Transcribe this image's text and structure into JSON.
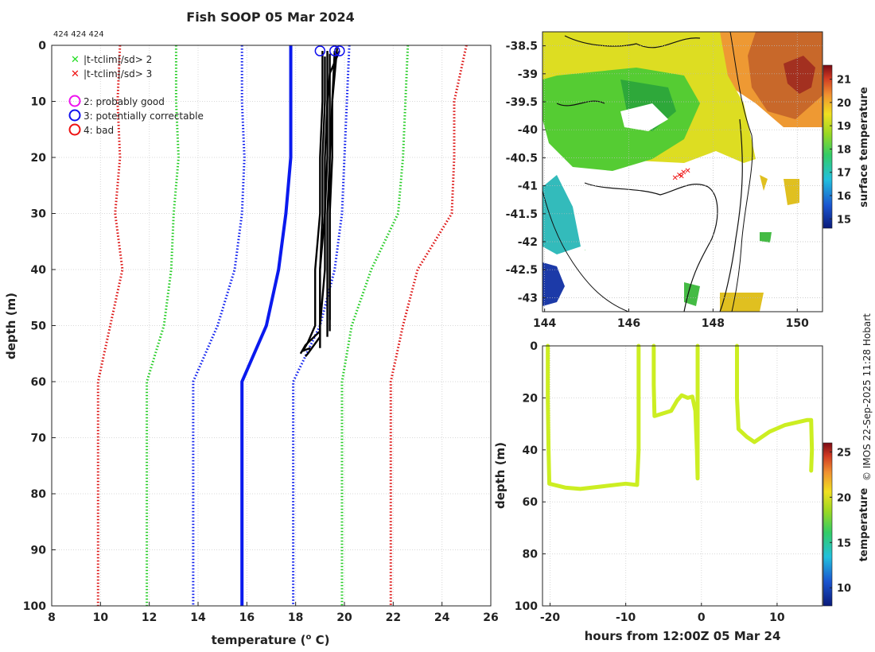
{
  "title": "Fish SOOP 05 Mar 2024",
  "id_label": "424 424 424",
  "credit": "© IMOS 22-Sep-2025 11:28 Hobart",
  "legend": {
    "items": [
      {
        "label": "|t-tclim|/sd> 2",
        "marker": "x",
        "color": "#22dd22"
      },
      {
        "label": "|t-tclim|/sd> 3",
        "marker": "x",
        "color": "#ee1111"
      },
      {
        "label": "2: probably good",
        "marker": "o",
        "color": "#ee11ee"
      },
      {
        "label": "3: potentially correctable",
        "marker": "o",
        "color": "#1111ee"
      },
      {
        "label": "4: bad",
        "marker": "o",
        "color": "#ee1111"
      }
    ]
  },
  "colors": {
    "clim_mean": "#0a1aee",
    "clim_sd2": "#22cc22",
    "clim_sd3": "#dd1111",
    "profile": "#000000",
    "transect": "#ccee22",
    "map_track": "#ee1111"
  },
  "chart_data": [
    {
      "type": "line",
      "name": "profile-plot",
      "xlabel": "temperature (o C)",
      "xlabel_main": "temperature (",
      "xlabel_sup": "o",
      "xlabel_end": " C)",
      "ylabel": "depth (m)",
      "xlim": [
        8,
        26
      ],
      "ylim": [
        100,
        0
      ],
      "xticks": [
        8,
        10,
        12,
        14,
        16,
        18,
        20,
        22,
        24,
        26
      ],
      "yticks": [
        0,
        10,
        20,
        30,
        40,
        50,
        60,
        70,
        80,
        90,
        100
      ],
      "grid": true,
      "series": [
        {
          "name": "clim mean",
          "style": "solid",
          "role": "clim_mean",
          "points": [
            [
              17.8,
              0
            ],
            [
              17.8,
              10
            ],
            [
              17.8,
              20
            ],
            [
              17.6,
              30
            ],
            [
              17.3,
              40
            ],
            [
              16.8,
              50
            ],
            [
              15.8,
              60
            ],
            [
              15.8,
              70
            ],
            [
              15.8,
              80
            ],
            [
              15.8,
              90
            ],
            [
              15.8,
              100
            ]
          ]
        },
        {
          "name": "clim +2sd",
          "style": "dotted",
          "role": "clim_sd2",
          "points": [
            [
              22.6,
              0
            ],
            [
              22.5,
              10
            ],
            [
              22.4,
              20
            ],
            [
              22.2,
              30
            ],
            [
              21.1,
              40
            ],
            [
              20.3,
              50
            ],
            [
              19.9,
              60
            ],
            [
              19.9,
              70
            ],
            [
              19.9,
              80
            ],
            [
              19.9,
              90
            ],
            [
              19.9,
              100
            ]
          ]
        },
        {
          "name": "clim -2sd",
          "style": "dotted",
          "role": "clim_sd2",
          "points": [
            [
              13.1,
              0
            ],
            [
              13.1,
              10
            ],
            [
              13.2,
              20
            ],
            [
              13.0,
              30
            ],
            [
              12.9,
              40
            ],
            [
              12.6,
              50
            ],
            [
              11.9,
              60
            ],
            [
              11.9,
              70
            ],
            [
              11.9,
              80
            ],
            [
              11.9,
              90
            ],
            [
              11.9,
              100
            ]
          ]
        },
        {
          "name": "clim +3sd",
          "style": "dotted",
          "role": "clim_sd3",
          "points": [
            [
              25.0,
              0
            ],
            [
              24.5,
              10
            ],
            [
              24.5,
              20
            ],
            [
              24.4,
              30
            ],
            [
              23.0,
              40
            ],
            [
              22.4,
              50
            ],
            [
              21.9,
              60
            ],
            [
              21.9,
              70
            ],
            [
              21.9,
              80
            ],
            [
              21.9,
              90
            ],
            [
              21.9,
              100
            ]
          ]
        },
        {
          "name": "clim -3sd",
          "style": "dotted",
          "role": "clim_sd3",
          "points": [
            [
              10.8,
              0
            ],
            [
              10.7,
              10
            ],
            [
              10.8,
              20
            ],
            [
              10.6,
              30
            ],
            [
              10.9,
              40
            ],
            [
              10.4,
              50
            ],
            [
              9.9,
              60
            ],
            [
              9.9,
              70
            ],
            [
              9.9,
              80
            ],
            [
              9.9,
              90
            ],
            [
              9.9,
              100
            ]
          ]
        },
        {
          "name": "clim upper blue",
          "style": "dotted",
          "role": "clim_mean",
          "points": [
            [
              20.2,
              0
            ],
            [
              20.1,
              10
            ],
            [
              20.0,
              20
            ],
            [
              19.9,
              30
            ],
            [
              19.6,
              40
            ],
            [
              19.0,
              50
            ],
            [
              17.9,
              60
            ],
            [
              17.9,
              70
            ],
            [
              17.9,
              80
            ],
            [
              17.9,
              90
            ],
            [
              17.9,
              100
            ]
          ]
        },
        {
          "name": "clim lower blue",
          "style": "dotted",
          "role": "clim_mean",
          "points": [
            [
              15.8,
              0
            ],
            [
              15.8,
              10
            ],
            [
              15.9,
              20
            ],
            [
              15.8,
              30
            ],
            [
              15.5,
              40
            ],
            [
              14.8,
              50
            ],
            [
              13.8,
              60
            ],
            [
              13.8,
              70
            ],
            [
              13.8,
              80
            ],
            [
              13.8,
              90
            ],
            [
              13.8,
              100
            ]
          ]
        }
      ],
      "profiles": [
        [
          [
            19.1,
            1
          ],
          [
            19.1,
            10
          ],
          [
            19.0,
            20
          ],
          [
            19.0,
            30
          ],
          [
            18.8,
            40
          ],
          [
            18.8,
            50
          ],
          [
            18.5,
            53
          ],
          [
            18.3,
            54.5
          ],
          [
            18.6,
            54
          ]
        ],
        [
          [
            19.2,
            2
          ],
          [
            19.2,
            10
          ],
          [
            19.1,
            20
          ],
          [
            19.1,
            30
          ],
          [
            19.0,
            40
          ],
          [
            19.0,
            51
          ],
          [
            18.4,
            53.5
          ],
          [
            18.2,
            55
          ]
        ],
        [
          [
            19.3,
            1
          ],
          [
            19.3,
            10
          ],
          [
            19.2,
            20
          ],
          [
            19.2,
            30
          ],
          [
            19.0,
            40
          ],
          [
            19.0,
            52
          ],
          [
            18.5,
            55
          ],
          [
            18.4,
            55.5
          ]
        ],
        [
          [
            19.4,
            1.5
          ],
          [
            19.4,
            10
          ],
          [
            19.4,
            20
          ],
          [
            19.3,
            30
          ],
          [
            19.3,
            40
          ],
          [
            19.3,
            50
          ],
          [
            19.3,
            52
          ]
        ],
        [
          [
            19.6,
            1
          ],
          [
            19.5,
            10
          ],
          [
            19.4,
            20
          ],
          [
            19.4,
            30
          ],
          [
            19.4,
            40
          ],
          [
            19.4,
            50
          ],
          [
            19.4,
            51
          ]
        ],
        [
          [
            19.7,
            0.5
          ],
          [
            19.5,
            10
          ],
          [
            19.5,
            20
          ],
          [
            19.4,
            30
          ],
          [
            19.4,
            40
          ],
          [
            19.4,
            49
          ]
        ],
        [
          [
            19.8,
            1
          ],
          [
            19.4,
            5
          ],
          [
            19.3,
            10
          ],
          [
            19.3,
            20
          ],
          [
            19.2,
            30
          ],
          [
            19.2,
            40
          ],
          [
            19.0,
            50
          ],
          [
            19.0,
            54
          ]
        ]
      ],
      "flag_markers": [
        [
          19.0,
          1
        ],
        [
          19.6,
          1
        ],
        [
          19.8,
          1
        ]
      ]
    },
    {
      "type": "heatmap",
      "name": "surface-temperature-map",
      "xlim": [
        143.95,
        150.6
      ],
      "ylim": [
        -43.25,
        -38.25
      ],
      "xticks": [
        144,
        146,
        148,
        150
      ],
      "yticks": [
        -38.5,
        -39,
        -39.5,
        -40,
        -40.5,
        -41,
        -41.5,
        -42,
        -42.5,
        -43
      ],
      "yticklabels": [
        "-38.5",
        "-39",
        "-39.5",
        "-40",
        "-40.5",
        "-41",
        "-41.5",
        "-42",
        "-42.5",
        "-43"
      ],
      "colorbar_label": "surface temperature",
      "colorbar_range": [
        14.6,
        21.6
      ],
      "colorbar_ticks": [
        15,
        16,
        17,
        18,
        19,
        20,
        21
      ],
      "track_points": [
        [
          147.1,
          -40.85
        ],
        [
          147.2,
          -40.8
        ],
        [
          147.3,
          -40.75
        ],
        [
          147.4,
          -40.72
        ],
        [
          147.25,
          -40.82
        ]
      ]
    },
    {
      "type": "scatter",
      "name": "depth-time-section",
      "xlabel": "hours from 12:00Z 05 Mar 24",
      "ylabel": "depth (m)",
      "xlim": [
        -21,
        16
      ],
      "ylim": [
        100,
        0
      ],
      "xticks": [
        -20,
        -10,
        0,
        10
      ],
      "yticks": [
        0,
        20,
        40,
        60,
        80,
        100
      ],
      "colorbar_label": "temperature",
      "colorbar_range": [
        8,
        26
      ],
      "colorbar_ticks": [
        10,
        15,
        20,
        25
      ],
      "grid": true,
      "segments": [
        [
          [
            -20.3,
            0
          ],
          [
            -20.3,
            20
          ],
          [
            -20.2,
            40
          ],
          [
            -20.1,
            53
          ],
          [
            -18,
            54.5
          ],
          [
            -16,
            55
          ],
          [
            -13,
            54
          ],
          [
            -10,
            53
          ],
          [
            -8.5,
            53.5
          ],
          [
            -8.3,
            40
          ],
          [
            -8.3,
            20
          ],
          [
            -8.3,
            0
          ]
        ],
        [
          [
            -6.3,
            0
          ],
          [
            -6.3,
            15
          ],
          [
            -6.2,
            27
          ],
          [
            -4,
            25
          ],
          [
            -3.2,
            21
          ],
          [
            -2.6,
            19
          ],
          [
            -1.8,
            20
          ],
          [
            -1.2,
            19.5
          ],
          [
            -0.8,
            25
          ],
          [
            -0.6,
            40
          ],
          [
            -0.5,
            51
          ],
          [
            -0.5,
            30
          ],
          [
            -0.5,
            0
          ]
        ],
        [
          [
            4.7,
            0
          ],
          [
            4.7,
            20
          ],
          [
            4.9,
            32
          ],
          [
            6,
            35
          ],
          [
            7,
            37
          ],
          [
            9,
            33
          ],
          [
            11,
            30.5
          ],
          [
            14,
            28.5
          ],
          [
            14.5,
            28.5
          ],
          [
            14.6,
            40
          ],
          [
            14.5,
            48
          ]
        ]
      ]
    }
  ]
}
